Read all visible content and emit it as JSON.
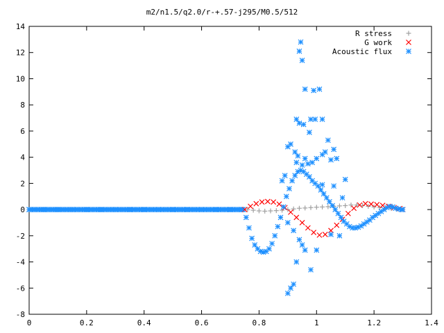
{
  "chart_data": {
    "type": "scatter",
    "title": "m2/n1.5/q2.0/r-+.57-j295/M0.5/512",
    "xlabel": "",
    "ylabel": "",
    "xlim": [
      0,
      1.4
    ],
    "ylim": [
      -8,
      14
    ],
    "x_ticks": [
      "0",
      "0.2",
      "0.4",
      "0.6",
      "0.8",
      "1",
      "1.2",
      "1.4"
    ],
    "y_ticks": [
      "-8",
      "-6",
      "-4",
      "-2",
      "0",
      "2",
      "4",
      "6",
      "8",
      "10",
      "12",
      "14"
    ],
    "grid": false,
    "legend_position": "top-right",
    "series": [
      {
        "name": "R stress",
        "marker": "plus",
        "color": "#a0a0a0",
        "x": [
          0.76,
          0.78,
          0.8,
          0.82,
          0.84,
          0.86,
          0.88,
          0.9,
          0.92,
          0.94,
          0.96,
          0.98,
          1.0,
          1.02,
          1.04,
          1.06,
          1.08,
          1.1,
          1.12,
          1.14,
          1.16,
          1.18,
          1.2,
          1.22,
          1.24,
          1.26,
          1.28,
          1.3
        ],
        "y": [
          0,
          -0.05,
          -0.1,
          -0.12,
          -0.1,
          -0.08,
          -0.05,
          0,
          0.05,
          0.1,
          0.12,
          0.15,
          0.18,
          0.2,
          0.22,
          0.25,
          0.28,
          0.3,
          0.35,
          0.35,
          0.3,
          0.25,
          0.2,
          0.15,
          0.1,
          0.08,
          0.04,
          0
        ]
      },
      {
        "name": "G work",
        "marker": "cross",
        "color": "#ff0000",
        "x": [
          0.75,
          0.77,
          0.79,
          0.81,
          0.83,
          0.85,
          0.87,
          0.89,
          0.91,
          0.93,
          0.95,
          0.97,
          0.99,
          1.01,
          1.03,
          1.05,
          1.07,
          1.09,
          1.11,
          1.13,
          1.15,
          1.17,
          1.19,
          1.21,
          1.23,
          1.25,
          1.27,
          1.29,
          1.3
        ],
        "y": [
          0,
          0.25,
          0.45,
          0.58,
          0.62,
          0.58,
          0.42,
          0.15,
          -0.2,
          -0.6,
          -1.0,
          -1.4,
          -1.75,
          -1.95,
          -1.9,
          -1.6,
          -1.2,
          -0.75,
          -0.3,
          0.1,
          0.35,
          0.45,
          0.42,
          0.38,
          0.32,
          0.25,
          0.15,
          0.08,
          0
        ]
      },
      {
        "name": "Acoustic flux",
        "marker": "asterisk",
        "color": "#1e90ff",
        "x": [
          0.0,
          0.05,
          0.1,
          0.15,
          0.2,
          0.25,
          0.3,
          0.35,
          0.4,
          0.45,
          0.5,
          0.55,
          0.6,
          0.65,
          0.7,
          0.74,
          0.755,
          0.765,
          0.775,
          0.785,
          0.795,
          0.805,
          0.815,
          0.825,
          0.835,
          0.845,
          0.855,
          0.865,
          0.875,
          0.885,
          0.895,
          0.905,
          0.915,
          0.925,
          0.935,
          0.945,
          0.955,
          0.965,
          0.975,
          0.985,
          0.995,
          1.005,
          1.015,
          1.025,
          1.035,
          1.045,
          1.055,
          1.065,
          1.075,
          1.085,
          1.095,
          1.105,
          1.115,
          1.125,
          1.135,
          1.145,
          1.155,
          1.165,
          1.175,
          1.185,
          1.195,
          1.205,
          1.215,
          1.225,
          1.235,
          1.245,
          1.255,
          1.265,
          1.275,
          1.285,
          1.295,
          1.3,
          0.94,
          0.945,
          0.95,
          0.94,
          0.96,
          0.99,
          1.01,
          0.98,
          0.93,
          0.955,
          0.975,
          0.995,
          1.02,
          1.04,
          1.06,
          1.03,
          0.925,
          0.935,
          0.96,
          0.985,
          1.0,
          1.02,
          1.05,
          1.07,
          0.9,
          0.91,
          0.93,
          0.95,
          0.97,
          0.89,
          0.88,
          0.9,
          0.92,
          0.94,
          0.95,
          0.96,
          0.93,
          0.92,
          0.91,
          0.9,
          0.98,
          1.0,
          1.05,
          1.08,
          1.1,
          1.02,
          1.06,
          1.09
        ],
        "y": [
          0,
          0,
          0,
          0,
          0,
          0,
          0,
          0,
          0,
          0,
          0,
          0,
          0,
          0,
          0,
          0,
          -0.6,
          -1.4,
          -2.2,
          -2.7,
          -3.0,
          -3.2,
          -3.25,
          -3.2,
          -3.0,
          -2.6,
          -2.0,
          -1.3,
          -0.6,
          0.2,
          1.0,
          1.6,
          2.2,
          2.6,
          2.9,
          3.0,
          2.9,
          2.7,
          2.5,
          2.2,
          2.0,
          1.8,
          1.5,
          1.2,
          0.9,
          0.6,
          0.3,
          0.0,
          -0.3,
          -0.6,
          -0.9,
          -1.1,
          -1.3,
          -1.4,
          -1.4,
          -1.35,
          -1.25,
          -1.1,
          -0.95,
          -0.8,
          -0.6,
          -0.45,
          -0.3,
          -0.15,
          0.0,
          0.15,
          0.25,
          0.2,
          0.1,
          0.05,
          0.0,
          0.0,
          12.1,
          12.8,
          11.4,
          6.6,
          9.2,
          9.1,
          9.2,
          6.9,
          6.9,
          6.5,
          5.9,
          6.9,
          6.9,
          5.3,
          4.6,
          4.4,
          4.4,
          4.1,
          3.9,
          3.6,
          3.9,
          4.2,
          3.8,
          3.9,
          4.8,
          5.0,
          3.6,
          3.4,
          3.5,
          2.6,
          2.2,
          -1.0,
          -1.6,
          -2.3,
          -2.7,
          -3.1,
          -4.0,
          -5.7,
          -6.0,
          -6.4,
          -4.6,
          -3.1,
          -1.9,
          -2.0,
          2.3,
          1.9,
          1.8,
          0.9
        ]
      }
    ]
  }
}
